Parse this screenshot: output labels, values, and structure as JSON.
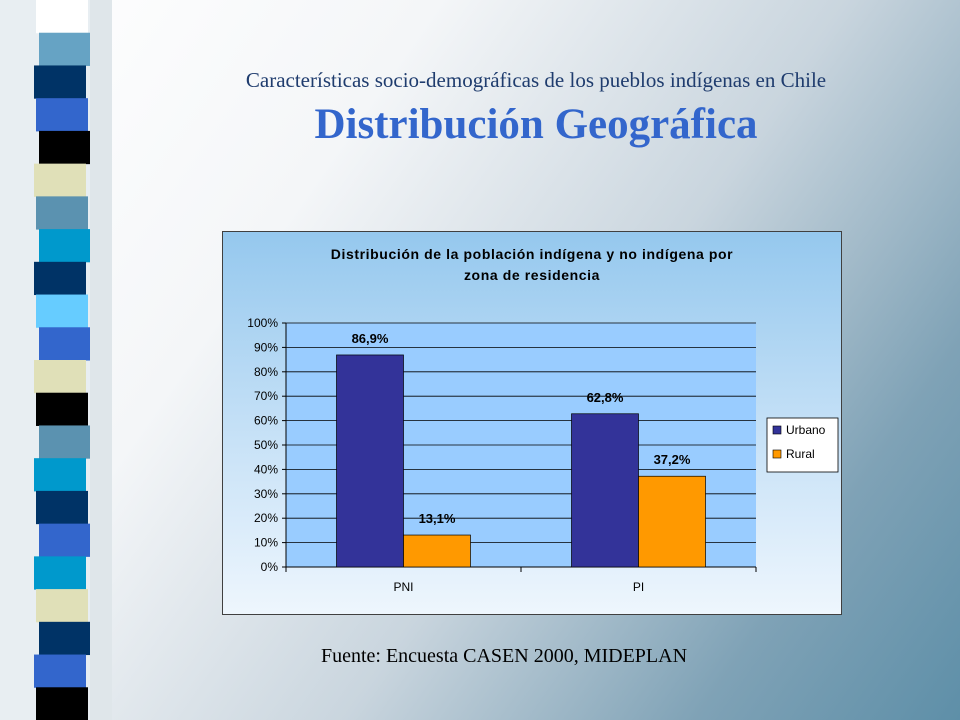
{
  "slide": {
    "subtitle": "Características socio-demográficas de los pueblos indígenas en Chile",
    "title": "Distribución Geográfica",
    "source": "Fuente: Encuesta CASEN 2000, MIDEPLAN"
  },
  "chart_data": {
    "type": "bar",
    "title_lines": [
      "Distribución de la población indígena y no indígena por",
      "zona de residencia"
    ],
    "categories": [
      "PNI",
      "PI"
    ],
    "series": [
      {
        "name": "Urbano",
        "values": [
          86.9,
          62.8
        ],
        "labels": [
          "86,9%",
          "62,8%"
        ],
        "color": "#333399"
      },
      {
        "name": "Rural",
        "values": [
          13.1,
          37.2
        ],
        "labels": [
          "13,1%",
          "37,2%"
        ],
        "color": "#ff9900"
      }
    ],
    "y_ticks": [
      "0%",
      "10%",
      "20%",
      "30%",
      "40%",
      "50%",
      "60%",
      "70%",
      "80%",
      "90%",
      "100%"
    ],
    "ylim": [
      0,
      100
    ],
    "legend_position": "right",
    "grid": true
  },
  "colors": {
    "stripes": [
      "#ffffff",
      "#66a3c4",
      "#003366",
      "#3366cc",
      "#000000",
      "#e0e0b8",
      "#5b92b0",
      "#0099cc",
      "#003366",
      "#66ccff",
      "#3366cc",
      "#e0e0b8",
      "#000000",
      "#5b92b0",
      "#0099cc",
      "#003366",
      "#3366cc",
      "#0099cc",
      "#e0e0b8",
      "#003366",
      "#3366cc",
      "#000000"
    ]
  }
}
